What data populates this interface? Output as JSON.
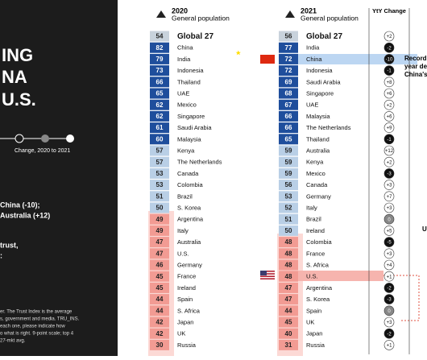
{
  "left_panel": {
    "title_lines": [
      "ING",
      "NA",
      "U.S."
    ],
    "legend": "Change, 2020 to 2021",
    "highlights": [
      "China (-10);",
      "Australia (+12)"
    ],
    "note_lines": [
      "trust,",
      ":"
    ],
    "footnote_lines": [
      "er. The Trust Index is the average",
      "s, government and media. TRU_INS.",
      "each one, please indicate how",
      "o what is right. 9-point scale; top 4",
      "27-mkt avg."
    ]
  },
  "columns": [
    {
      "year": "2020",
      "subtitle": "General population",
      "names": [
        "Global 27",
        "China",
        "India",
        "Indonesia",
        "Thailand",
        "UAE",
        "Mexico",
        "Singapore",
        "Saudi Arabia",
        "Malaysia",
        "Kenya",
        "The Netherlands",
        "Canada",
        "Colombia",
        "Brazil",
        "S. Korea",
        "Argentina",
        "Italy",
        "Australia",
        "U.S.",
        "Germany",
        "France",
        "Ireland",
        "Spain",
        "S. Africa",
        "Japan",
        "UK",
        "Russia"
      ],
      "values": [
        54,
        82,
        79,
        73,
        66,
        65,
        62,
        62,
        61,
        60,
        57,
        57,
        53,
        53,
        51,
        50,
        49,
        49,
        47,
        47,
        46,
        45,
        45,
        44,
        44,
        42,
        42,
        30
      ],
      "colors": [
        "#c8d2dc",
        "#1f4e9c",
        "#1f4e9c",
        "#1f4e9c",
        "#1f4e9c",
        "#1f4e9c",
        "#1f4e9c",
        "#1f4e9c",
        "#1f4e9c",
        "#1f4e9c",
        "#b9cfe6",
        "#b9cfe6",
        "#b9cfe6",
        "#b9cfe6",
        "#b9cfe6",
        "#b9cfe6",
        "#f29b93",
        "#f29b93",
        "#f29b93",
        "#f29b93",
        "#f29b93",
        "#f29b93",
        "#f29b93",
        "#f29b93",
        "#f29b93",
        "#f29b93",
        "#f29b93",
        "#f29b93"
      ]
    },
    {
      "year": "2021",
      "subtitle": "General population",
      "change_header": "YtY Change",
      "names": [
        "Global 27",
        "India",
        "China",
        "Indonesia",
        "Saudi Arabia",
        "Singapore",
        "UAE",
        "Malaysia",
        "The Netherlands",
        "Thailand",
        "Australia",
        "Kenya",
        "Mexico",
        "Canada",
        "Germany",
        "Italy",
        "Brazil",
        "Ireland",
        "Colombia",
        "France",
        "S. Africa",
        "U.S.",
        "Argentina",
        "S. Korea",
        "Spain",
        "UK",
        "Japan",
        "Russia"
      ],
      "values": [
        56,
        77,
        72,
        72,
        69,
        68,
        67,
        66,
        66,
        65,
        59,
        59,
        59,
        56,
        53,
        52,
        51,
        50,
        48,
        48,
        48,
        48,
        47,
        47,
        44,
        45,
        40,
        31
      ],
      "colors": [
        "#c8d2dc",
        "#1f4e9c",
        "#1f4e9c",
        "#1f4e9c",
        "#1f4e9c",
        "#1f4e9c",
        "#1f4e9c",
        "#1f4e9c",
        "#1f4e9c",
        "#1f4e9c",
        "#b9cfe6",
        "#b9cfe6",
        "#b9cfe6",
        "#b9cfe6",
        "#b9cfe6",
        "#b9cfe6",
        "#b9cfe6",
        "#b9cfe6",
        "#f29b93",
        "#f29b93",
        "#f29b93",
        "#f29b93",
        "#f29b93",
        "#f29b93",
        "#f29b93",
        "#f29b93",
        "#f29b93",
        "#f29b93"
      ],
      "changes": [
        2,
        -2,
        -10,
        -1,
        8,
        6,
        2,
        6,
        9,
        -1,
        12,
        2,
        -3,
        3,
        7,
        3,
        0,
        5,
        -5,
        3,
        4,
        1,
        -2,
        -3,
        0,
        3,
        -2,
        1
      ],
      "change_labels": [
        "+2",
        "-2",
        "-10",
        "-1",
        "+8",
        "+6",
        "+2",
        "+6",
        "+9",
        "-1",
        "+12",
        "+2",
        "-3",
        "+3",
        "+7",
        "+3",
        "0",
        "+5",
        "-5",
        "+3",
        "+4",
        "+1",
        "-2",
        "-3",
        "0",
        "+3",
        "-2",
        "+1"
      ]
    }
  ],
  "annotations": [
    "Record",
    "year de",
    "China's",
    "U"
  ]
}
